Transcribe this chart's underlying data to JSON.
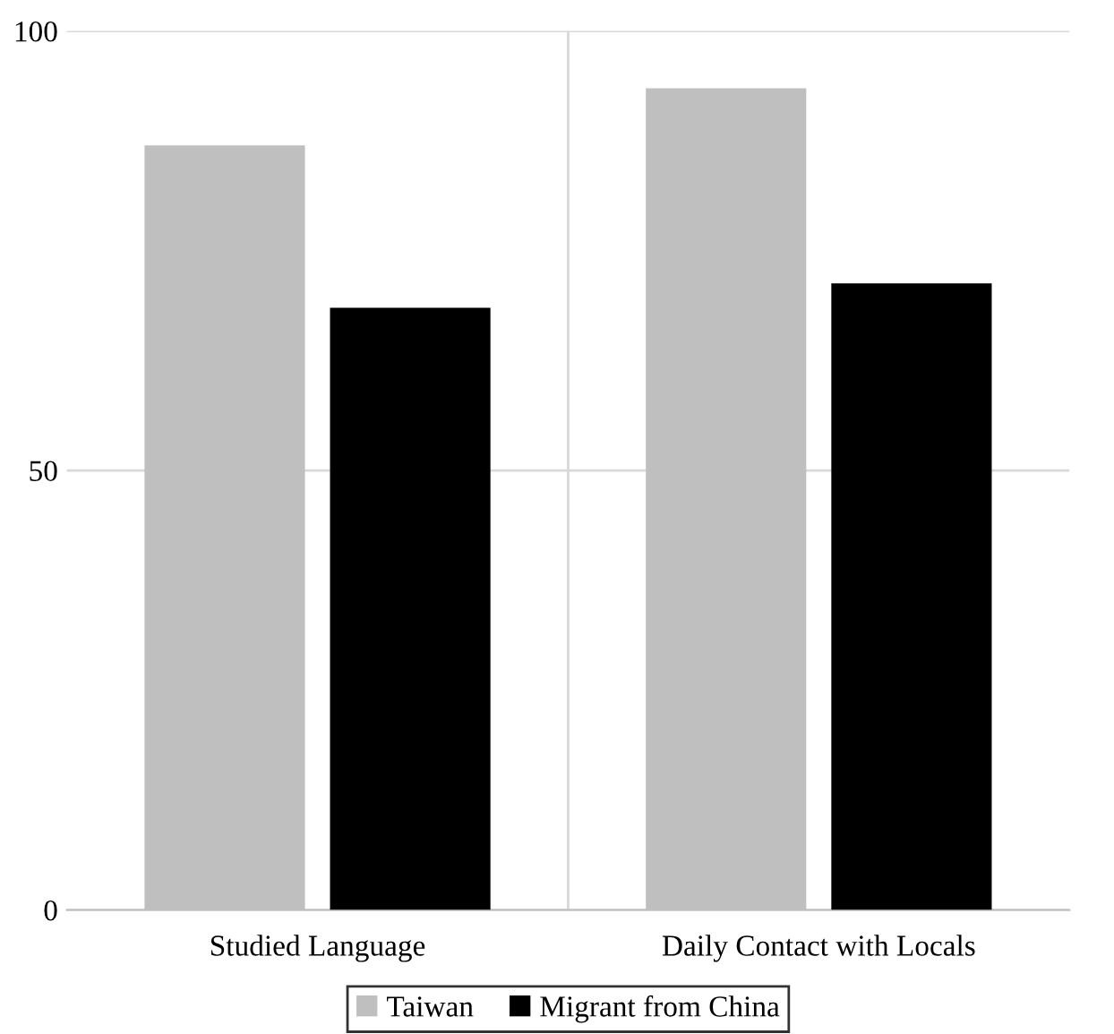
{
  "chart_data": {
    "type": "bar",
    "categories": [
      "Studied Language",
      "Daily Contact with Locals"
    ],
    "series": [
      {
        "name": "Taiwan",
        "color": "#bfbfbf",
        "values": [
          87,
          93.5
        ]
      },
      {
        "name": "Migrant from China",
        "color": "#000000",
        "values": [
          68.5,
          71.3
        ]
      }
    ],
    "ylim": [
      0,
      100
    ],
    "yticks": [
      0,
      50,
      100
    ],
    "grid": true,
    "legend": "bottom"
  }
}
